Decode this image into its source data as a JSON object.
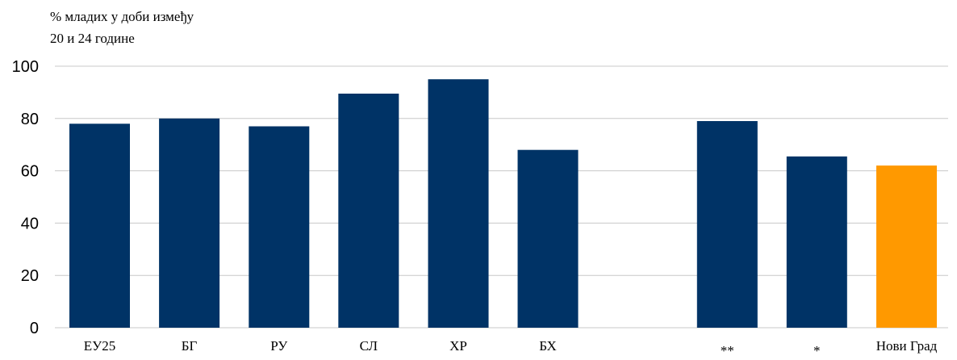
{
  "chart_data": {
    "type": "bar",
    "ylabel_lines": [
      "% младих у доби између",
      "20 и 24 године"
    ],
    "categories": [
      "ЕУ25",
      "БГ",
      "РУ",
      "СЛ",
      "ХР",
      "БХ",
      "",
      "**",
      "*",
      "Нови Град"
    ],
    "values": [
      78,
      80,
      77,
      89.5,
      95,
      68,
      null,
      79,
      65.5,
      62
    ],
    "ylim": [
      0,
      100
    ],
    "yticks": [
      0,
      20,
      40,
      60,
      80,
      100
    ],
    "grid": true,
    "legend": "none",
    "colors": {
      "default_bar": "#003366",
      "highlight_bar": "#FF9900",
      "gridline": "#C8C8C8"
    },
    "highlight_index": 9
  }
}
